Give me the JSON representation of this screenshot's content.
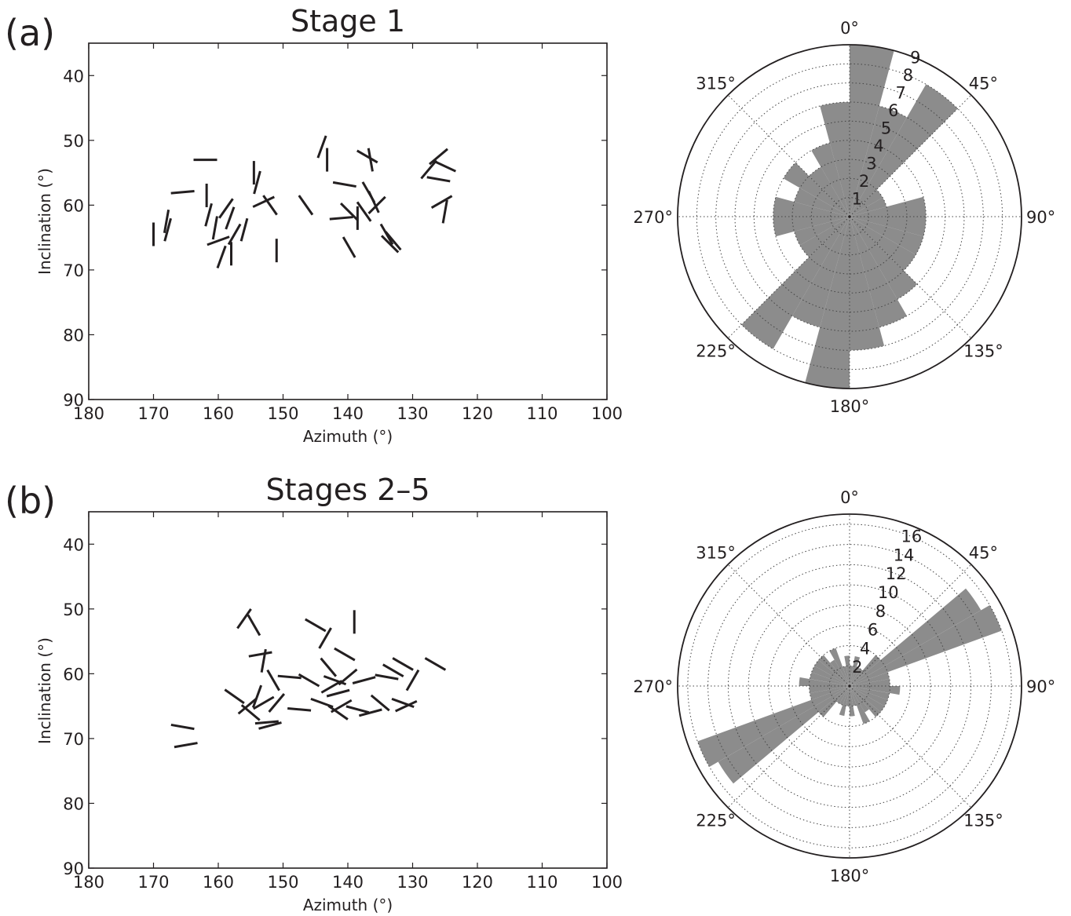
{
  "panels": [
    {
      "tag": "(a)",
      "chart_data": [
        {
          "type": "scatter",
          "marker": "oriented line segments",
          "title": "Stage 1",
          "xlabel": "Azimuth (°)",
          "ylabel": "Inclination (°)",
          "xlim": [
            180,
            100
          ],
          "ylim": [
            90,
            35
          ],
          "xticks": [
            "180",
            "170",
            "160",
            "150",
            "140",
            "130",
            "120",
            "110",
            "100"
          ],
          "yticks": [
            "40",
            "50",
            "60",
            "70",
            "80",
            "90"
          ],
          "grid": false,
          "segments": [
            {
              "x": 170.0,
              "y": 64.5,
              "angle": 90
            },
            {
              "x": 168.0,
              "y": 62.5,
              "angle": 80
            },
            {
              "x": 167.8,
              "y": 63.8,
              "angle": 75
            },
            {
              "x": 165.5,
              "y": 58.0,
              "angle": 5
            },
            {
              "x": 162.0,
              "y": 53.0,
              "angle": 0
            },
            {
              "x": 161.8,
              "y": 58.5,
              "angle": 90
            },
            {
              "x": 161.5,
              "y": 61.5,
              "angle": 75
            },
            {
              "x": 160.5,
              "y": 63.5,
              "angle": 80
            },
            {
              "x": 160.0,
              "y": 65.5,
              "angle": 20
            },
            {
              "x": 159.5,
              "y": 68.0,
              "angle": 70
            },
            {
              "x": 158.8,
              "y": 60.5,
              "angle": 55
            },
            {
              "x": 158.2,
              "y": 62.0,
              "angle": 70
            },
            {
              "x": 158.0,
              "y": 67.5,
              "angle": 90
            },
            {
              "x": 157.5,
              "y": 64.5,
              "angle": 60
            },
            {
              "x": 156.0,
              "y": 63.8,
              "angle": 75
            },
            {
              "x": 154.5,
              "y": 55.0,
              "angle": 90
            },
            {
              "x": 154.0,
              "y": 56.5,
              "angle": 75
            },
            {
              "x": 153.0,
              "y": 59.5,
              "angle": 25
            },
            {
              "x": 152.0,
              "y": 60.0,
              "angle": 125
            },
            {
              "x": 151.0,
              "y": 67.0,
              "angle": 90
            },
            {
              "x": 146.5,
              "y": 60.0,
              "angle": 125
            },
            {
              "x": 144.0,
              "y": 51.0,
              "angle": 70
            },
            {
              "x": 143.2,
              "y": 53.0,
              "angle": 90
            },
            {
              "x": 140.5,
              "y": 56.8,
              "angle": 170
            },
            {
              "x": 141.0,
              "y": 62.0,
              "angle": 5
            },
            {
              "x": 139.8,
              "y": 61.0,
              "angle": 135
            },
            {
              "x": 139.8,
              "y": 66.5,
              "angle": 120
            },
            {
              "x": 138.5,
              "y": 62.0,
              "angle": 90
            },
            {
              "x": 137.5,
              "y": 61.0,
              "angle": 125
            },
            {
              "x": 137.0,
              "y": 52.5,
              "angle": 150
            },
            {
              "x": 136.5,
              "y": 53.0,
              "angle": 100
            },
            {
              "x": 136.8,
              "y": 58.0,
              "angle": 120
            },
            {
              "x": 136.0,
              "y": 59.5,
              "angle": 115
            },
            {
              "x": 135.5,
              "y": 60.0,
              "angle": 45
            },
            {
              "x": 134.0,
              "y": 64.5,
              "angle": 120
            },
            {
              "x": 133.5,
              "y": 66.0,
              "angle": 135
            },
            {
              "x": 133.0,
              "y": 65.5,
              "angle": 130
            },
            {
              "x": 127.5,
              "y": 54.5,
              "angle": 50
            },
            {
              "x": 126.0,
              "y": 52.5,
              "angle": 40
            },
            {
              "x": 126.0,
              "y": 56.0,
              "angle": 170
            },
            {
              "x": 125.0,
              "y": 54.0,
              "angle": 155
            },
            {
              "x": 125.5,
              "y": 59.5,
              "angle": 30
            },
            {
              "x": 125.0,
              "y": 61.0,
              "angle": 80
            }
          ]
        },
        {
          "type": "rose",
          "direction": "clockwise from top",
          "angle_labels": [
            "0°",
            "45°",
            "90°",
            "135°",
            "180°",
            "225°",
            "270°",
            "315°"
          ],
          "rmax": 9,
          "radial_ticks": [
            "1",
            "2",
            "3",
            "4",
            "5",
            "6",
            "7",
            "8",
            "9"
          ],
          "bin_width_deg": 15,
          "bins": [
            {
              "start": 0,
              "count": 9
            },
            {
              "start": 15,
              "count": 6
            },
            {
              "start": 30,
              "count": 8
            },
            {
              "start": 45,
              "count": 2
            },
            {
              "start": 60,
              "count": 2
            },
            {
              "start": 75,
              "count": 4
            },
            {
              "start": 90,
              "count": 4
            },
            {
              "start": 105,
              "count": 4
            },
            {
              "start": 120,
              "count": 4
            },
            {
              "start": 135,
              "count": 5
            },
            {
              "start": 150,
              "count": 6
            },
            {
              "start": 165,
              "count": 7
            },
            {
              "start": 180,
              "count": 9
            },
            {
              "start": 195,
              "count": 6
            },
            {
              "start": 210,
              "count": 8
            },
            {
              "start": 225,
              "count": 3
            },
            {
              "start": 240,
              "count": 3
            },
            {
              "start": 255,
              "count": 4
            },
            {
              "start": 270,
              "count": 4
            },
            {
              "start": 285,
              "count": 3
            },
            {
              "start": 300,
              "count": 4
            },
            {
              "start": 315,
              "count": 3
            },
            {
              "start": 330,
              "count": 4
            },
            {
              "start": 345,
              "count": 6
            }
          ]
        }
      ]
    },
    {
      "tag": "(b)",
      "chart_data": [
        {
          "type": "scatter",
          "marker": "oriented line segments",
          "title": "Stages 2–5",
          "xlabel": "Azimuth (°)",
          "ylabel": "Inclination (°)",
          "xlim": [
            180,
            100
          ],
          "ylim": [
            90,
            35
          ],
          "xticks": [
            "180",
            "170",
            "160",
            "150",
            "140",
            "130",
            "120",
            "110",
            "100"
          ],
          "yticks": [
            "40",
            "50",
            "60",
            "70",
            "80",
            "90"
          ],
          "grid": false,
          "segments": [
            {
              "x": 165.5,
              "y": 68.2,
              "angle": 170
            },
            {
              "x": 165.0,
              "y": 71.0,
              "angle": 10
            },
            {
              "x": 157.5,
              "y": 63.5,
              "angle": 145
            },
            {
              "x": 156.0,
              "y": 51.5,
              "angle": 55
            },
            {
              "x": 155.5,
              "y": 65.0,
              "angle": 40
            },
            {
              "x": 155.0,
              "y": 66.0,
              "angle": 140
            },
            {
              "x": 154.5,
              "y": 52.5,
              "angle": 120
            },
            {
              "x": 154.0,
              "y": 63.5,
              "angle": 70
            },
            {
              "x": 153.5,
              "y": 57.0,
              "angle": 10
            },
            {
              "x": 153.0,
              "y": 58.0,
              "angle": 80
            },
            {
              "x": 153.0,
              "y": 64.5,
              "angle": 30
            },
            {
              "x": 152.5,
              "y": 67.5,
              "angle": 5
            },
            {
              "x": 152.0,
              "y": 68.0,
              "angle": 15
            },
            {
              "x": 151.5,
              "y": 61.0,
              "angle": 120
            },
            {
              "x": 151.0,
              "y": 64.5,
              "angle": 50
            },
            {
              "x": 149.0,
              "y": 60.5,
              "angle": 175
            },
            {
              "x": 147.5,
              "y": 65.5,
              "angle": 175
            },
            {
              "x": 146.0,
              "y": 61.0,
              "angle": 150
            },
            {
              "x": 145.0,
              "y": 52.5,
              "angle": 150
            },
            {
              "x": 144.0,
              "y": 64.5,
              "angle": 160
            },
            {
              "x": 143.5,
              "y": 54.5,
              "angle": 60
            },
            {
              "x": 143.0,
              "y": 59.0,
              "angle": 130
            },
            {
              "x": 142.5,
              "y": 62.0,
              "angle": 30
            },
            {
              "x": 142.0,
              "y": 61.0,
              "angle": 160
            },
            {
              "x": 141.5,
              "y": 66.0,
              "angle": 145
            },
            {
              "x": 141.5,
              "y": 63.0,
              "angle": 15
            },
            {
              "x": 141.0,
              "y": 65.0,
              "angle": 30
            },
            {
              "x": 140.5,
              "y": 57.0,
              "angle": 150
            },
            {
              "x": 140.0,
              "y": 60.5,
              "angle": 40
            },
            {
              "x": 139.0,
              "y": 52.0,
              "angle": 90
            },
            {
              "x": 138.5,
              "y": 65.5,
              "angle": 165
            },
            {
              "x": 137.5,
              "y": 61.0,
              "angle": 15
            },
            {
              "x": 136.5,
              "y": 66.0,
              "angle": 15
            },
            {
              "x": 135.0,
              "y": 64.5,
              "angle": 140
            },
            {
              "x": 134.0,
              "y": 60.5,
              "angle": 170
            },
            {
              "x": 133.0,
              "y": 59.5,
              "angle": 150
            },
            {
              "x": 131.5,
              "y": 58.5,
              "angle": 150
            },
            {
              "x": 131.5,
              "y": 64.5,
              "angle": 160
            },
            {
              "x": 131.0,
              "y": 65.0,
              "angle": 25
            },
            {
              "x": 130.0,
              "y": 61.0,
              "angle": 60
            },
            {
              "x": 126.5,
              "y": 58.5,
              "angle": 150
            }
          ]
        },
        {
          "type": "rose",
          "direction": "clockwise from top",
          "angle_labels": [
            "0°",
            "45°",
            "90°",
            "135°",
            "180°",
            "225°",
            "270°",
            "315°"
          ],
          "rmax": 17,
          "radial_ticks": [
            "2",
            "4",
            "6",
            "8",
            "10",
            "12",
            "14",
            "16"
          ],
          "bin_width_deg": 10,
          "bins": [
            {
              "start": 0,
              "count": 2
            },
            {
              "start": 10,
              "count": 3
            },
            {
              "start": 20,
              "count": 2
            },
            {
              "start": 30,
              "count": 2
            },
            {
              "start": 40,
              "count": 4
            },
            {
              "start": 50,
              "count": 15
            },
            {
              "start": 60,
              "count": 16
            },
            {
              "start": 70,
              "count": 4
            },
            {
              "start": 80,
              "count": 4
            },
            {
              "start": 90,
              "count": 5
            },
            {
              "start": 100,
              "count": 4
            },
            {
              "start": 110,
              "count": 4
            },
            {
              "start": 120,
              "count": 4
            },
            {
              "start": 130,
              "count": 4
            },
            {
              "start": 140,
              "count": 3
            },
            {
              "start": 150,
              "count": 4
            },
            {
              "start": 160,
              "count": 2
            },
            {
              "start": 170,
              "count": 3
            },
            {
              "start": 180,
              "count": 2
            },
            {
              "start": 190,
              "count": 3
            },
            {
              "start": 200,
              "count": 2
            },
            {
              "start": 210,
              "count": 2
            },
            {
              "start": 220,
              "count": 4
            },
            {
              "start": 230,
              "count": 15
            },
            {
              "start": 240,
              "count": 16
            },
            {
              "start": 250,
              "count": 4
            },
            {
              "start": 260,
              "count": 4
            },
            {
              "start": 270,
              "count": 5
            },
            {
              "start": 280,
              "count": 4
            },
            {
              "start": 290,
              "count": 4
            },
            {
              "start": 300,
              "count": 4
            },
            {
              "start": 310,
              "count": 4
            },
            {
              "start": 320,
              "count": 3
            },
            {
              "start": 330,
              "count": 4
            },
            {
              "start": 340,
              "count": 2
            },
            {
              "start": 350,
              "count": 3
            }
          ]
        }
      ]
    }
  ]
}
